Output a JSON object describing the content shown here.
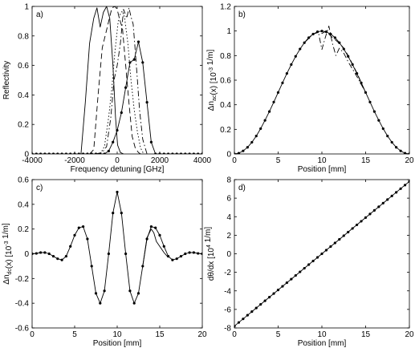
{
  "chart_data": [
    {
      "type": "line",
      "panel_label": "a)",
      "xlabel": "Frequency detuning [GHz]",
      "ylabel": "Reflectivity",
      "xlim": [
        -4000,
        4000
      ],
      "ylim": [
        0,
        1
      ],
      "xticks": [
        "-4000",
        "-2000",
        "0",
        "2000",
        "4000"
      ],
      "yticks": [
        "0",
        "0.2",
        "0.4",
        "0.6",
        "0.8",
        "1"
      ],
      "series": [
        {
          "style": "solid",
          "x": [
            -2000,
            -1700,
            -1500,
            -1300,
            -1100,
            -950,
            -800,
            -650,
            -500,
            -350,
            -200,
            -80,
            20,
            150,
            300
          ],
          "y": [
            0,
            0,
            0.35,
            0.75,
            0.92,
            0.99,
            0.86,
            0.96,
            1.0,
            0.92,
            0.6,
            0.25,
            0.06,
            0.01,
            0
          ]
        },
        {
          "style": "dashed",
          "x": [
            -1300,
            -1100,
            -900,
            -700,
            -500,
            -400,
            -250,
            -100,
            0,
            100,
            250,
            400,
            550,
            700,
            850,
            1000,
            1100
          ],
          "y": [
            0,
            0.03,
            0.4,
            0.72,
            0.84,
            0.9,
            0.99,
            1.0,
            0.98,
            0.92,
            0.85,
            0.6,
            0.35,
            0.12,
            0.04,
            0.01,
            0
          ]
        },
        {
          "style": "dashdot",
          "x": [
            -1000,
            -700,
            -500,
            -300,
            -150,
            0,
            150,
            300,
            450,
            550,
            650,
            750,
            850,
            950,
            1050,
            1200,
            1400
          ],
          "y": [
            0,
            0.01,
            0.05,
            0.25,
            0.5,
            0.6,
            0.75,
            0.98,
            0.92,
            0.99,
            0.93,
            0.88,
            0.7,
            0.5,
            0.3,
            0.1,
            0
          ]
        },
        {
          "style": "dotted",
          "x": [
            -800,
            -600,
            -400,
            -250,
            -100,
            50,
            150,
            250,
            350,
            500,
            650,
            800,
            950,
            1100,
            1250
          ],
          "y": [
            0,
            0.05,
            0.25,
            0.45,
            0.7,
            0.9,
            0.95,
            0.97,
            0.92,
            0.75,
            0.5,
            0.3,
            0.15,
            0.04,
            0
          ]
        },
        {
          "style": "solid-dots",
          "x": [
            -4000,
            -3800,
            -3600,
            -3400,
            -3200,
            -3000,
            -2800,
            -2600,
            -2400,
            -2200,
            -2000,
            -1800,
            -1600,
            -1400,
            -1200,
            -1000,
            -800,
            -600,
            -400,
            -200,
            0,
            200,
            400,
            600,
            800,
            1000,
            1200,
            1400,
            1600,
            1800,
            2000,
            2200,
            2400,
            2600,
            2800,
            3000,
            3200,
            3400,
            3600,
            3800,
            4000
          ],
          "y": [
            0,
            0,
            0,
            0,
            0,
            0,
            0,
            0,
            0,
            0,
            0,
            0,
            0,
            0,
            0,
            0,
            0,
            0,
            0.02,
            0.08,
            0.16,
            0.28,
            0.45,
            0.62,
            0.64,
            0.76,
            0.62,
            0.35,
            0.08,
            0,
            0,
            0,
            0,
            0,
            0,
            0,
            0,
            0,
            0,
            0,
            0
          ]
        }
      ]
    },
    {
      "type": "line",
      "panel_label": "b)",
      "xlabel": "Position [mm]",
      "ylabel": "Δn_ac(x) [10^-3 1/m]",
      "xlim": [
        0,
        20
      ],
      "ylim": [
        0,
        1.2
      ],
      "xticks": [
        "0",
        "5",
        "10",
        "15",
        "20"
      ],
      "yticks": [
        "0",
        "0.2",
        "0.4",
        "0.6",
        "0.8",
        "1",
        "1.2"
      ],
      "series": [
        {
          "style": "solid-dots",
          "x": [
            0,
            0.5,
            1,
            1.5,
            2,
            2.5,
            3,
            3.5,
            4,
            4.5,
            5,
            5.5,
            6,
            6.5,
            7,
            7.5,
            8,
            8.5,
            9,
            9.5,
            10,
            10.5,
            11,
            11.5,
            12,
            12.5,
            13,
            13.5,
            14,
            14.5,
            15,
            15.5,
            16,
            16.5,
            17,
            17.5,
            18,
            18.5,
            19,
            19.5,
            20
          ],
          "y": [
            0,
            0.006,
            0.025,
            0.054,
            0.095,
            0.146,
            0.206,
            0.273,
            0.345,
            0.422,
            0.5,
            0.578,
            0.655,
            0.727,
            0.794,
            0.854,
            0.905,
            0.946,
            0.975,
            0.994,
            1.0,
            0.994,
            0.975,
            0.946,
            0.905,
            0.854,
            0.794,
            0.727,
            0.655,
            0.578,
            0.5,
            0.422,
            0.345,
            0.273,
            0.206,
            0.146,
            0.095,
            0.054,
            0.025,
            0.006,
            0
          ]
        },
        {
          "style": "dashdot",
          "x": [
            8,
            9,
            9.6,
            10,
            10.4,
            10.8,
            11.2,
            11.6,
            12,
            12.5,
            13,
            14,
            15
          ],
          "y": [
            0.905,
            0.975,
            0.99,
            0.85,
            0.95,
            1.04,
            0.9,
            0.8,
            0.86,
            0.82,
            0.75,
            0.63,
            0.5
          ]
        },
        {
          "style": "dashed",
          "x": [
            9,
            9.6,
            10,
            10.5,
            11,
            11.5,
            12,
            12.5,
            13,
            14,
            15
          ],
          "y": [
            0.975,
            0.99,
            0.98,
            1.0,
            0.96,
            0.93,
            0.9,
            0.86,
            0.8,
            0.66,
            0.5
          ]
        }
      ]
    },
    {
      "type": "line",
      "panel_label": "c)",
      "xlabel": "Position [mm]",
      "ylabel": "Δn_dc(x) [10^-3 1/m]",
      "xlim": [
        0,
        20
      ],
      "ylim": [
        -0.6,
        0.6
      ],
      "xticks": [
        "0",
        "5",
        "10",
        "15",
        "20"
      ],
      "yticks": [
        "-0.6",
        "-0.4",
        "-0.2",
        "0",
        "0.2",
        "0.4",
        "0.6"
      ],
      "series": [
        {
          "style": "solid-dots",
          "x": [
            0,
            0.5,
            1,
            1.5,
            2,
            2.5,
            3,
            3.5,
            4,
            4.5,
            5,
            5.5,
            6,
            6.5,
            7,
            7.5,
            8,
            8.5,
            9,
            9.5,
            10,
            10.5,
            11,
            11.5,
            12,
            12.5,
            13,
            13.5,
            14,
            14.5,
            15,
            15.5,
            16,
            16.5,
            17,
            17.5,
            18,
            18.5,
            19,
            19.5,
            20
          ],
          "y": [
            0,
            0.003,
            0.01,
            0.01,
            0,
            -0.02,
            -0.04,
            -0.05,
            -0.02,
            0.06,
            0.15,
            0.21,
            0.22,
            0.12,
            -0.1,
            -0.32,
            -0.4,
            -0.3,
            0,
            0.33,
            0.5,
            0.33,
            0,
            -0.3,
            -0.4,
            -0.32,
            -0.1,
            0.12,
            0.22,
            0.21,
            0.15,
            0.06,
            -0.02,
            -0.05,
            -0.04,
            -0.02,
            0,
            0.01,
            0.01,
            0.003,
            0
          ]
        },
        {
          "style": "solid",
          "x": [
            13,
            13.5,
            14,
            14.3,
            14.6,
            15,
            15.5,
            16
          ],
          "y": [
            -0.1,
            0.13,
            0.2,
            0.17,
            0.1,
            0.06,
            0.01,
            -0.03
          ]
        }
      ]
    },
    {
      "type": "line",
      "panel_label": "d)",
      "xlabel": "Position [mm]",
      "ylabel": "dθ/dx [10^4 1/m]",
      "xlim": [
        0,
        20
      ],
      "ylim": [
        -8,
        8
      ],
      "xticks": [
        "0",
        "5",
        "10",
        "15",
        "20"
      ],
      "yticks": [
        "-8",
        "-6",
        "-4",
        "-2",
        "0",
        "2",
        "4",
        "6",
        "8"
      ],
      "series": [
        {
          "style": "solid-dots",
          "x": [
            0,
            0.5,
            1,
            1.5,
            2,
            2.5,
            3,
            3.5,
            4,
            4.5,
            5,
            5.5,
            6,
            6.5,
            7,
            7.5,
            8,
            8.5,
            9,
            9.5,
            10,
            10.5,
            11,
            11.5,
            12,
            12.5,
            13,
            13.5,
            14,
            14.5,
            15,
            15.5,
            16,
            16.5,
            17,
            17.5,
            18,
            18.5,
            19,
            19.5,
            20
          ],
          "y": [
            -7.8,
            -7.41,
            -7.02,
            -6.63,
            -6.24,
            -5.85,
            -5.46,
            -5.07,
            -4.68,
            -4.29,
            -3.9,
            -3.51,
            -3.12,
            -2.73,
            -2.34,
            -1.95,
            -1.56,
            -1.17,
            -0.78,
            -0.39,
            0,
            0.39,
            0.78,
            1.17,
            1.56,
            1.95,
            2.34,
            2.73,
            3.12,
            3.51,
            3.9,
            4.29,
            4.68,
            5.07,
            5.46,
            5.85,
            6.24,
            6.63,
            7.02,
            7.41,
            7.8
          ]
        }
      ]
    }
  ]
}
